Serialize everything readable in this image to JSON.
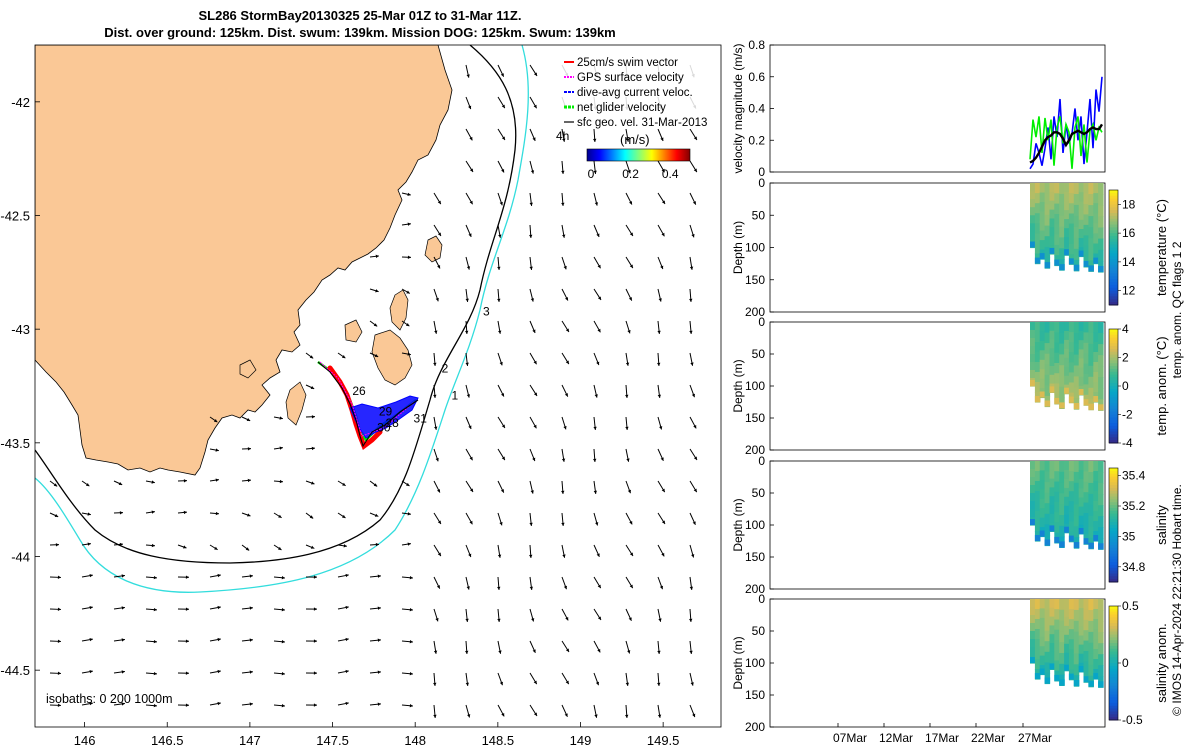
{
  "header": {
    "title_line1": "SL286 StormBay20130325 25-Mar 01Z to 31-Mar 11Z.",
    "title_line2": "Dist. over ground: 125km. Dist. swum: 139km. Mission DOG: 125km. Swum: 139km"
  },
  "chart_data": [
    {
      "type": "map",
      "name": "glider-track-map",
      "xlim": [
        145.7,
        149.85
      ],
      "ylim": [
        -44.75,
        -41.75
      ],
      "x_ticks": [
        "146",
        "146.5",
        "147",
        "147.5",
        "148",
        "148.5",
        "149",
        "149.5"
      ],
      "y_ticks": [
        "-42",
        "-42.5",
        "-43",
        "-43.5",
        "-44",
        "-44.5"
      ],
      "legend": [
        {
          "label": "25cm/s swim vector",
          "color": "#ff0000"
        },
        {
          "label": "GPS surface velocity",
          "color": "#ff00ff"
        },
        {
          "label": "dive-avg current veloc.",
          "color": "#0000ff"
        },
        {
          "label": "net glider velocity",
          "color": "#00ee00"
        },
        {
          "label": "sfc geo. vel. 31-Mar-2013",
          "color": "#000000"
        }
      ],
      "legend_corner": "4h",
      "colorbar": {
        "label": "(m/s)",
        "ticks": [
          "0",
          "0.2",
          "0.4"
        ],
        "range": [
          -0.02,
          0.5
        ]
      },
      "track_day_labels": [
        {
          "text": "26",
          "lon": 147.62,
          "lat": -43.29
        },
        {
          "text": "29",
          "lon": 147.78,
          "lat": -43.38
        },
        {
          "text": "28",
          "lon": 147.82,
          "lat": -43.43
        },
        {
          "text": "30",
          "lon": 147.77,
          "lat": -43.45
        },
        {
          "text": "31",
          "lon": 147.99,
          "lat": -43.41
        },
        {
          "text": "1",
          "lon": 148.22,
          "lat": -43.31
        },
        {
          "text": "2",
          "lon": 148.16,
          "lat": -43.19
        },
        {
          "text": "3",
          "lon": 148.41,
          "lat": -42.94
        }
      ],
      "isobath_label": "isobaths: 0   200  1000m",
      "land_color": "#fac896"
    },
    {
      "type": "line",
      "name": "velocity-magnitude-panel",
      "ylabel": "velocity magnitude (m/s)",
      "ylim": [
        0,
        0.8
      ],
      "y_ticks": [
        "0",
        "0.2",
        "0.4",
        "0.6",
        "0.8"
      ],
      "series": [
        {
          "name": "dive-avg current",
          "color": "#0000ff",
          "values": [
            0.02,
            0.05,
            0.18,
            0.12,
            0.04,
            0.15,
            0.28,
            0.08,
            0.35,
            0.22,
            0.46,
            0.12,
            0.3,
            0.18,
            0.24,
            0.4,
            0.2,
            0.35,
            0.05,
            0.25,
            0.46,
            0.15,
            0.52,
            0.38,
            0.6
          ]
        },
        {
          "name": "net glider velocity",
          "color": "#00ee00",
          "values": [
            0.08,
            0.33,
            0.22,
            0.35,
            0.12,
            0.34,
            0.2,
            0.33,
            0.04,
            0.28,
            0.35,
            0.18,
            0.3,
            0.25,
            0.02,
            0.28,
            0.35,
            0.1,
            0.3,
            0.06,
            0.26,
            0.3,
            0.2,
            0.28,
            0.25
          ]
        },
        {
          "name": "swim speed",
          "color": "#000000",
          "values": [
            0.06,
            0.07,
            0.09,
            0.12,
            0.16,
            0.2,
            0.22,
            0.23,
            0.25,
            0.25,
            0.24,
            0.21,
            0.17,
            0.2,
            0.24,
            0.25,
            0.26,
            0.25,
            0.24,
            0.25,
            0.27,
            0.28,
            0.27,
            0.27,
            0.3
          ]
        }
      ]
    },
    {
      "type": "heatmap",
      "name": "temperature-section",
      "ylabel": "Depth (m)",
      "colorbar_label": "temperature (°C)",
      "colorbar_ticks": [
        "12",
        "14",
        "16",
        "18"
      ],
      "clim": [
        11,
        19
      ],
      "ylim": [
        0,
        200
      ],
      "y_ticks": [
        "0",
        "50",
        "100",
        "150",
        "200"
      ],
      "surface_value": 17.2,
      "bottom_value": 15.4,
      "bottom_depths": [
        100,
        125,
        118,
        132,
        110,
        128,
        135,
        112,
        126,
        136,
        114,
        130,
        137,
        125,
        138
      ],
      "bottom_cap_value": 13.8
    },
    {
      "type": "heatmap",
      "name": "temperature-anomaly-section",
      "ylabel": "Depth (m)",
      "colorbar_label": "temp. anom. (°C)",
      "colorbar_ticks": [
        "-4",
        "-2",
        "0",
        "2",
        "4"
      ],
      "clim": [
        -4,
        4
      ],
      "ylim": [
        0,
        200
      ],
      "y_ticks": [
        "0",
        "50",
        "100",
        "150",
        "200"
      ],
      "surface_value": 0.6,
      "bottom_value": 2.0,
      "bottom_depths": [
        100,
        125,
        118,
        132,
        110,
        128,
        135,
        112,
        126,
        136,
        114,
        130,
        137,
        125,
        138
      ],
      "bottom_cap_value": 2.6
    },
    {
      "type": "heatmap",
      "name": "salinity-section",
      "ylabel": "Depth (m)",
      "colorbar_label": "salinity",
      "colorbar_ticks": [
        "34.8",
        "35",
        "35.2",
        "35.4"
      ],
      "clim": [
        34.7,
        35.45
      ],
      "ylim": [
        0,
        200
      ],
      "y_ticks": [
        "0",
        "50",
        "100",
        "150",
        "200"
      ],
      "surface_value": 35.2,
      "bottom_value": 35.08,
      "bottom_depths": [
        100,
        125,
        118,
        132,
        110,
        128,
        135,
        112,
        126,
        136,
        114,
        130,
        137,
        125,
        138
      ],
      "bottom_cap_value": 34.92
    },
    {
      "type": "heatmap",
      "name": "salinity-anomaly-section",
      "ylabel": "Depth (m)",
      "colorbar_label": "salinity anom.",
      "colorbar_ticks": [
        "-0.5",
        "0",
        "0.5"
      ],
      "clim": [
        -0.5,
        0.5
      ],
      "ylim": [
        0,
        200
      ],
      "y_ticks": [
        "0",
        "50",
        "100",
        "150",
        "200"
      ],
      "surface_value": 0.32,
      "bottom_value": 0.02,
      "bottom_depths": [
        100,
        125,
        118,
        132,
        110,
        128,
        135,
        112,
        126,
        136,
        114,
        130,
        137,
        125,
        138
      ],
      "bottom_cap_value": -0.06
    }
  ],
  "time_axis": {
    "labels": [
      "07Mar",
      "12Mar",
      "17Mar",
      "22Mar",
      "27Mar"
    ]
  },
  "side_note": "temp. anom. QC flags 1  2",
  "credit": "© IMOS 14-Apr-2024 22:21:30 Hobart time."
}
